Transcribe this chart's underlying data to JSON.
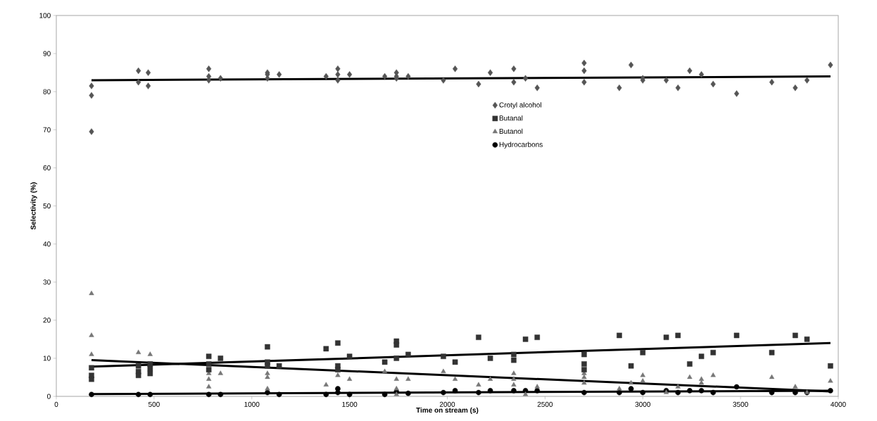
{
  "chart_data": {
    "type": "scatter",
    "xlabel": "Time on stream (s)",
    "ylabel": "Selectivity (%)",
    "xlim": [
      0,
      4000
    ],
    "ylim": [
      0,
      100
    ],
    "xticks": [
      0,
      500,
      1000,
      1500,
      2000,
      2500,
      3000,
      3500,
      4000
    ],
    "yticks": [
      0,
      10,
      20,
      30,
      40,
      50,
      60,
      70,
      80,
      90,
      100
    ],
    "grid": false,
    "legend": "center",
    "series": [
      {
        "name": "Crotyl alcohol",
        "color": "#555555",
        "marker": "diamond",
        "x": [
          180,
          180,
          180,
          420,
          420,
          470,
          470,
          780,
          780,
          780,
          840,
          1080,
          1080,
          1080,
          1140,
          1380,
          1440,
          1440,
          1440,
          1500,
          1680,
          1740,
          1740,
          1740,
          1800,
          1980,
          2040,
          2160,
          2220,
          2340,
          2340,
          2400,
          2460,
          2700,
          2700,
          2700,
          2880,
          2940,
          3000,
          3000,
          3120,
          3180,
          3240,
          3300,
          3360,
          3480,
          3660,
          3780,
          3840,
          3960
        ],
        "values": [
          81.5,
          79,
          69.5,
          85.5,
          82.5,
          85,
          81.5,
          86,
          84,
          83,
          83.5,
          85,
          84.5,
          83.5,
          84.5,
          84,
          86,
          84.5,
          83,
          84.5,
          84,
          85,
          84,
          83.5,
          84,
          83,
          86,
          82,
          85,
          86,
          82.5,
          83.5,
          81,
          87.5,
          85.5,
          82.5,
          81,
          87,
          83.5,
          83,
          83,
          81,
          85.5,
          84.5,
          82,
          79.5,
          82.5,
          81,
          83,
          87
        ]
      },
      {
        "name": "Butanal",
        "color": "#333333",
        "marker": "square",
        "x": [
          180,
          180,
          180,
          420,
          420,
          420,
          480,
          480,
          480,
          780,
          780,
          780,
          840,
          1080,
          1080,
          1080,
          1140,
          1380,
          1440,
          1440,
          1440,
          1500,
          1680,
          1740,
          1740,
          1740,
          1800,
          1980,
          2040,
          2160,
          2220,
          2340,
          2340,
          2400,
          2460,
          2700,
          2700,
          2700,
          2880,
          2940,
          3000,
          3120,
          3180,
          3240,
          3300,
          3360,
          3480,
          3660,
          3780,
          3840,
          3960
        ],
        "values": [
          7.5,
          5.5,
          4.5,
          8,
          6.5,
          5.5,
          8.5,
          7.3,
          6,
          10.5,
          8.5,
          7,
          10,
          13,
          9,
          8,
          8,
          12.5,
          14,
          8,
          7,
          10.5,
          9,
          14.5,
          13.5,
          10,
          11,
          10.5,
          9,
          15.5,
          10,
          11,
          9.5,
          15,
          15.5,
          11,
          8.5,
          7,
          16,
          8,
          11.5,
          15.5,
          16,
          8.5,
          10.5,
          11.5,
          16,
          11.5,
          16,
          15,
          8
        ]
      },
      {
        "name": "Butanol",
        "color": "#777777",
        "marker": "triangle",
        "x": [
          180,
          180,
          180,
          420,
          480,
          780,
          780,
          780,
          840,
          1080,
          1080,
          1080,
          1380,
          1440,
          1500,
          1680,
          1740,
          1740,
          1740,
          1800,
          1980,
          2040,
          2160,
          2220,
          2340,
          2340,
          2340,
          2400,
          2460,
          2700,
          2700,
          2700,
          2880,
          2940,
          3000,
          3000,
          3120,
          3180,
          3240,
          3300,
          3300,
          3360,
          3660,
          3780,
          3840,
          3960
        ],
        "values": [
          27,
          16,
          11,
          11.5,
          11,
          6,
          4.5,
          2.5,
          6,
          6,
          5,
          2,
          3,
          5.5,
          4.5,
          6.5,
          4.5,
          2,
          0.5,
          4.5,
          6.5,
          4.5,
          3,
          4.5,
          6,
          4.5,
          3,
          0.5,
          2.5,
          6,
          5,
          3.5,
          2,
          3.5,
          5.5,
          4,
          1,
          2.5,
          5,
          4.5,
          3.5,
          5.5,
          5,
          2.5,
          1,
          4
        ]
      },
      {
        "name": "Hydrocarbons",
        "color": "#000000",
        "marker": "circle",
        "x": [
          180,
          420,
          480,
          780,
          840,
          1080,
          1140,
          1380,
          1440,
          1440,
          1500,
          1680,
          1740,
          1800,
          1980,
          2040,
          2160,
          2220,
          2340,
          2400,
          2460,
          2700,
          2880,
          2940,
          3000,
          3120,
          3180,
          3240,
          3300,
          3360,
          3480,
          3660,
          3780,
          3840,
          3960
        ],
        "values": [
          0.5,
          0.5,
          0.5,
          0.5,
          0.5,
          1,
          0.5,
          0.5,
          2,
          1,
          0.5,
          0.5,
          1.2,
          0.8,
          1,
          1.5,
          1,
          1.5,
          1.5,
          1.5,
          1.5,
          1,
          1,
          2,
          1,
          1.5,
          1,
          1.5,
          1.5,
          1,
          2.5,
          1,
          1,
          1,
          1.5
        ]
      },
      {
        "type": "line",
        "color": "#000000",
        "x": [
          180,
          3960
        ],
        "values": [
          83,
          84
        ]
      },
      {
        "type": "line",
        "color": "#000000",
        "x": [
          180,
          3960
        ],
        "values": [
          7.8,
          14
        ]
      },
      {
        "type": "line",
        "color": "#000000",
        "x": [
          180,
          3960
        ],
        "values": [
          9.5,
          1.3
        ]
      },
      {
        "type": "line",
        "color": "#000000",
        "x": [
          180,
          3960
        ],
        "values": [
          0.6,
          1.5
        ]
      }
    ]
  }
}
